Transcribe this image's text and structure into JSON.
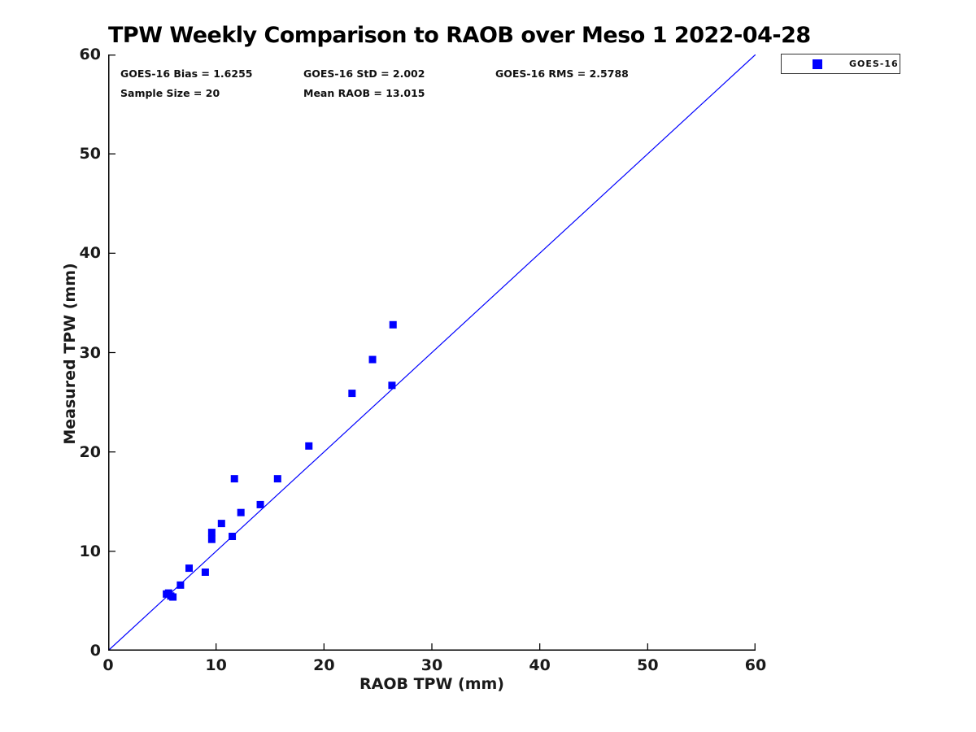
{
  "title": "TPW Weekly Comparison to RAOB over Meso 1 2022-04-28",
  "stats": {
    "bias": "GOES-16 Bias = 1.6255",
    "std": "GOES-16 StD = 2.002",
    "rms": "GOES-16 RMS = 2.5788",
    "sample_size": "Sample Size = 20",
    "mean_raob": "Mean RAOB = 13.015"
  },
  "legend": {
    "items": [
      {
        "label": "GOES-16",
        "marker_color": "#0000ff",
        "marker": "square"
      }
    ],
    "position": "top-right-outside"
  },
  "chart_data": {
    "type": "scatter",
    "title": "TPW Weekly Comparison to RAOB over Meso 1 2022-04-28",
    "xlabel": "RAOB TPW (mm)",
    "ylabel": "Measured TPW (mm)",
    "xlim": [
      0,
      60
    ],
    "ylim": [
      0,
      60
    ],
    "xticks": [
      0,
      10,
      20,
      30,
      40,
      50,
      60
    ],
    "yticks": [
      0,
      10,
      20,
      30,
      40,
      50,
      60
    ],
    "grid": false,
    "axis_color": "#000000",
    "series": [
      {
        "name": "GOES-16",
        "marker": "square",
        "marker_size": 9,
        "color": "#0000ff",
        "points": [
          [
            5.4,
            5.7
          ],
          [
            5.6,
            5.8
          ],
          [
            5.8,
            5.5
          ],
          [
            6.0,
            5.4
          ],
          [
            6.7,
            6.6
          ],
          [
            7.5,
            8.3
          ],
          [
            9.0,
            7.9
          ],
          [
            9.6,
            11.2
          ],
          [
            9.6,
            11.9
          ],
          [
            10.5,
            12.8
          ],
          [
            11.5,
            11.5
          ],
          [
            11.7,
            17.3
          ],
          [
            12.3,
            13.9
          ],
          [
            14.1,
            14.7
          ],
          [
            15.7,
            17.3
          ],
          [
            18.6,
            20.6
          ],
          [
            22.6,
            25.9
          ],
          [
            24.5,
            29.3
          ],
          [
            26.3,
            26.7
          ],
          [
            26.4,
            32.8
          ]
        ]
      }
    ],
    "reference_line": {
      "name": "identity-line",
      "from": [
        0,
        0
      ],
      "to": [
        60,
        60
      ],
      "color": "#0000ff"
    }
  }
}
